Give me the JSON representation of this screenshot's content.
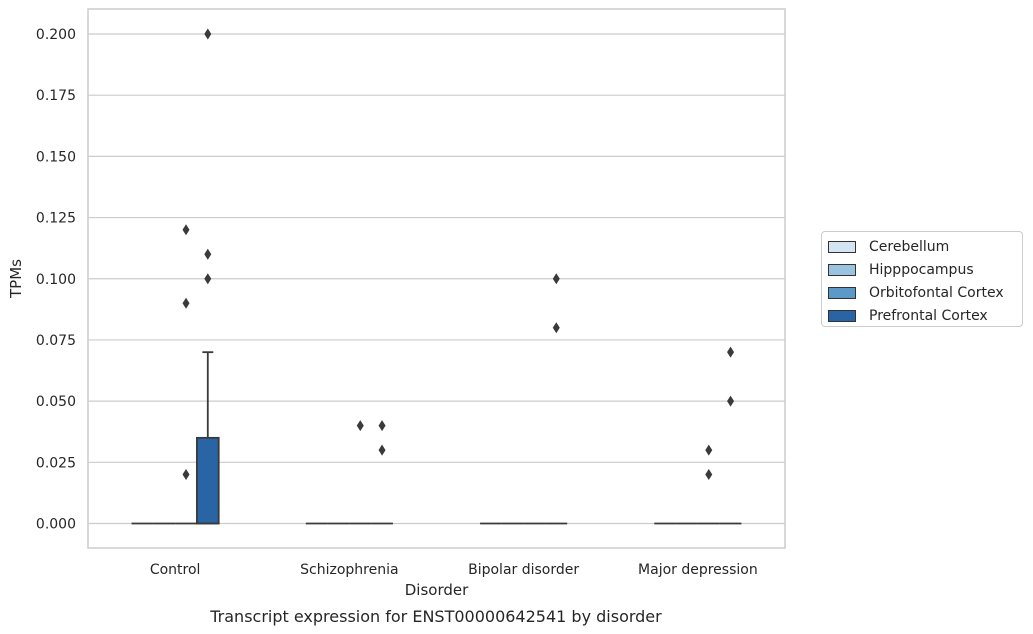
{
  "chart_data": {
    "type": "box",
    "title": "",
    "caption": "Transcript expression for ENST00000642541 by disorder",
    "xlabel": "Disorder",
    "ylabel": "TPMs",
    "categories": [
      "Control",
      "Schizophrenia",
      "Bipolar disorder",
      "Major depression"
    ],
    "ylim": [
      -0.01,
      0.21
    ],
    "yticks": [
      0.0,
      0.025,
      0.05,
      0.075,
      0.1,
      0.125,
      0.15,
      0.175,
      0.2
    ],
    "ytick_labels": [
      "0.000",
      "0.025",
      "0.050",
      "0.075",
      "0.100",
      "0.125",
      "0.150",
      "0.175",
      "0.200"
    ],
    "grid": true,
    "legend_position": "right, outside plot",
    "series": [
      {
        "name": "Cerebellum",
        "color": "#d3e4f3",
        "boxes": [
          {
            "q1": 0,
            "median": 0,
            "q3": 0,
            "whisker_low": 0,
            "whisker_high": 0,
            "outliers": []
          },
          {
            "q1": 0,
            "median": 0,
            "q3": 0,
            "whisker_low": 0,
            "whisker_high": 0,
            "outliers": []
          },
          {
            "q1": 0,
            "median": 0,
            "q3": 0,
            "whisker_low": 0,
            "whisker_high": 0,
            "outliers": []
          },
          {
            "q1": 0,
            "median": 0,
            "q3": 0,
            "whisker_low": 0,
            "whisker_high": 0,
            "outliers": []
          }
        ]
      },
      {
        "name": "Hipppocampus",
        "color": "#9ac3df",
        "boxes": [
          {
            "q1": 0,
            "median": 0,
            "q3": 0,
            "whisker_low": 0,
            "whisker_high": 0,
            "outliers": []
          },
          {
            "q1": 0,
            "median": 0,
            "q3": 0,
            "whisker_low": 0,
            "whisker_high": 0,
            "outliers": []
          },
          {
            "q1": 0,
            "median": 0,
            "q3": 0,
            "whisker_low": 0,
            "whisker_high": 0,
            "outliers": []
          },
          {
            "q1": 0,
            "median": 0,
            "q3": 0,
            "whisker_low": 0,
            "whisker_high": 0,
            "outliers": []
          }
        ]
      },
      {
        "name": "Orbitofontal Cortex",
        "color": "#5b9ac8",
        "boxes": [
          {
            "q1": 0,
            "median": 0,
            "q3": 0,
            "whisker_low": 0,
            "whisker_high": 0,
            "outliers": [
              0.02,
              0.09,
              0.12
            ]
          },
          {
            "q1": 0,
            "median": 0,
            "q3": 0,
            "whisker_low": 0,
            "whisker_high": 0,
            "outliers": [
              0.04
            ]
          },
          {
            "q1": 0,
            "median": 0,
            "q3": 0,
            "whisker_low": 0,
            "whisker_high": 0,
            "outliers": []
          },
          {
            "q1": 0,
            "median": 0,
            "q3": 0,
            "whisker_low": 0,
            "whisker_high": 0,
            "outliers": [
              0.02,
              0.03
            ]
          }
        ]
      },
      {
        "name": "Prefrontal Cortex",
        "color": "#2965a4",
        "boxes": [
          {
            "q1": 0,
            "median": 0,
            "q3": 0.035,
            "whisker_low": 0,
            "whisker_high": 0.07,
            "outliers": [
              0.1,
              0.11,
              0.2
            ]
          },
          {
            "q1": 0,
            "median": 0,
            "q3": 0,
            "whisker_low": 0,
            "whisker_high": 0,
            "outliers": [
              0.03,
              0.04
            ]
          },
          {
            "q1": 0,
            "median": 0,
            "q3": 0,
            "whisker_low": 0,
            "whisker_high": 0,
            "outliers": [
              0.08,
              0.1
            ]
          },
          {
            "q1": 0,
            "median": 0,
            "q3": 0,
            "whisker_low": 0,
            "whisker_high": 0,
            "outliers": [
              0.05,
              0.07
            ]
          }
        ]
      }
    ]
  }
}
